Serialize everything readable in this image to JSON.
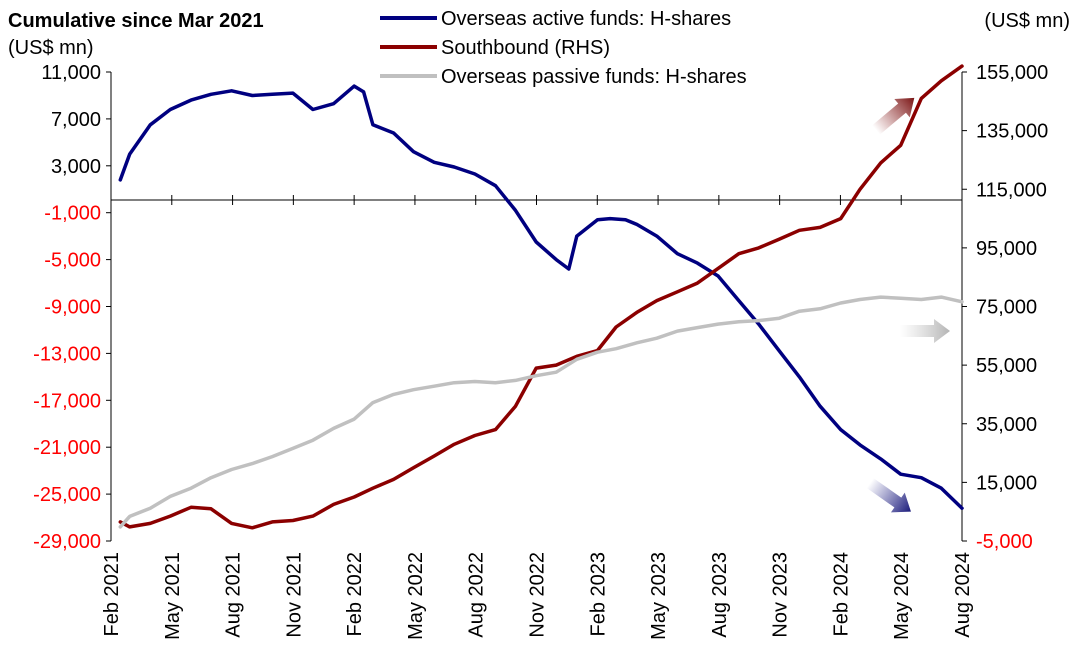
{
  "chart_data": {
    "type": "line",
    "title": "Cumulative since Mar 2021",
    "left_axis_unit": "(US$ mn)",
    "right_axis_unit": "(US$ mn)",
    "x_tick_labels": [
      "Feb 2021",
      "May 2021",
      "Aug 2021",
      "Nov 2021",
      "Feb 2022",
      "May 2022",
      "Aug 2022",
      "Nov 2022",
      "Feb 2023",
      "May 2023",
      "Aug 2023",
      "Nov 2023",
      "Feb 2024",
      "May 2024",
      "Aug 2024"
    ],
    "y_left": {
      "min": -29000,
      "max": 11000,
      "ticks": [
        11000,
        7000,
        3000,
        -1000,
        -5000,
        -9000,
        -13000,
        -17000,
        -21000,
        -25000,
        -29000
      ],
      "tick_labels": [
        "11,000",
        "7,000",
        "3,000",
        "-1,000",
        "-5,000",
        "-9,000",
        "-13,000",
        "-17,000",
        "-21,000",
        "-25,000",
        "-29,000"
      ]
    },
    "y_right": {
      "min": -5000,
      "max": 155000,
      "ticks": [
        155000,
        135000,
        115000,
        95000,
        75000,
        55000,
        35000,
        15000,
        -5000
      ],
      "tick_labels": [
        "155,000",
        "135,000",
        "115,000",
        "95,000",
        "75,000",
        "55,000",
        "35,000",
        "15,000",
        "-5,000"
      ]
    },
    "negative_label_color": "#ff0000",
    "series": [
      {
        "name": "Overseas active funds: H-shares",
        "axis": "left",
        "color": "#000080",
        "x": [
          "2021-02-15",
          "2021-03-01",
          "2021-04-01",
          "2021-05-01",
          "2021-06-01",
          "2021-07-01",
          "2021-08-01",
          "2021-09-01",
          "2021-10-01",
          "2021-11-01",
          "2021-12-01",
          "2022-01-01",
          "2022-02-01",
          "2022-02-15",
          "2022-03-01",
          "2022-04-01",
          "2022-05-01",
          "2022-06-01",
          "2022-07-01",
          "2022-08-01",
          "2022-09-01",
          "2022-10-01",
          "2022-11-01",
          "2022-12-01",
          "2022-12-20",
          "2023-01-01",
          "2023-02-01",
          "2023-02-20",
          "2023-03-15",
          "2023-04-01",
          "2023-05-01",
          "2023-06-01",
          "2023-07-01",
          "2023-08-01",
          "2023-09-01",
          "2023-10-01",
          "2023-11-01",
          "2023-12-01",
          "2024-01-01",
          "2024-02-01",
          "2024-03-01",
          "2024-04-01",
          "2024-05-01",
          "2024-06-01",
          "2024-07-01",
          "2024-08-01"
        ],
        "values": [
          1800,
          4000,
          6500,
          7800,
          8600,
          9100,
          9400,
          9000,
          9100,
          9200,
          7800,
          8300,
          9800,
          9300,
          6500,
          5800,
          4200,
          3300,
          2900,
          2300,
          1300,
          -800,
          -3500,
          -5000,
          -5800,
          -3000,
          -1600,
          -1500,
          -1600,
          -2000,
          -3000,
          -4500,
          -5300,
          -6400,
          -8500,
          -10500,
          -12800,
          -15000,
          -17500,
          -19500,
          -20800,
          -22000,
          -23300,
          -23600,
          -24500,
          -26200
        ]
      },
      {
        "name": "Southbound (RHS)",
        "axis": "right",
        "color": "#8b0000",
        "x": [
          "2021-02-15",
          "2021-03-01",
          "2021-04-01",
          "2021-05-01",
          "2021-06-01",
          "2021-07-01",
          "2021-08-01",
          "2021-09-01",
          "2021-10-01",
          "2021-11-01",
          "2021-12-01",
          "2022-01-01",
          "2022-02-01",
          "2022-03-01",
          "2022-04-01",
          "2022-05-01",
          "2022-06-01",
          "2022-07-01",
          "2022-08-01",
          "2022-09-01",
          "2022-10-01",
          "2022-11-01",
          "2022-12-01",
          "2023-01-01",
          "2023-02-01",
          "2023-03-01",
          "2023-04-01",
          "2023-05-01",
          "2023-06-01",
          "2023-07-01",
          "2023-08-01",
          "2023-09-01",
          "2023-10-01",
          "2023-11-01",
          "2023-12-01",
          "2024-01-01",
          "2024-02-01",
          "2024-03-01",
          "2024-04-01",
          "2024-05-01",
          "2024-06-01",
          "2024-07-01",
          "2024-08-01"
        ],
        "values": [
          1500,
          -200,
          1000,
          3500,
          6500,
          6000,
          1000,
          -500,
          1500,
          2000,
          3500,
          7500,
          10000,
          13000,
          16000,
          20000,
          24000,
          28000,
          31000,
          33000,
          41000,
          54000,
          55000,
          58000,
          60000,
          68000,
          73000,
          77000,
          80000,
          83000,
          88000,
          93000,
          95000,
          98000,
          101000,
          102000,
          105000,
          115000,
          124000,
          130000,
          146000,
          152000,
          157000
        ]
      },
      {
        "name": "Overseas passive funds: H-shares",
        "axis": "left",
        "color": "#c0c0c0",
        "x": [
          "2021-02-15",
          "2021-03-01",
          "2021-04-01",
          "2021-05-01",
          "2021-06-01",
          "2021-07-01",
          "2021-08-01",
          "2021-09-01",
          "2021-10-01",
          "2021-11-01",
          "2021-12-01",
          "2022-01-01",
          "2022-02-01",
          "2022-03-01",
          "2022-04-01",
          "2022-05-01",
          "2022-06-01",
          "2022-07-01",
          "2022-08-01",
          "2022-09-01",
          "2022-10-01",
          "2022-11-01",
          "2022-12-01",
          "2023-01-01",
          "2023-02-01",
          "2023-03-01",
          "2023-04-01",
          "2023-05-01",
          "2023-06-01",
          "2023-07-01",
          "2023-08-01",
          "2023-09-01",
          "2023-10-01",
          "2023-11-01",
          "2023-12-01",
          "2024-01-01",
          "2024-02-01",
          "2024-03-01",
          "2024-04-01",
          "2024-05-01",
          "2024-06-01",
          "2024-07-01",
          "2024-08-01"
        ],
        "values": [
          -27800,
          -26900,
          -26200,
          -25200,
          -24500,
          -23600,
          -22900,
          -22400,
          -21800,
          -21100,
          -20400,
          -19400,
          -18600,
          -17200,
          -16500,
          -16100,
          -15800,
          -15500,
          -15400,
          -15500,
          -15300,
          -14900,
          -14600,
          -13500,
          -12900,
          -12600,
          -12100,
          -11700,
          -11100,
          -10800,
          -10500,
          -10300,
          -10200,
          -10000,
          -9400,
          -9200,
          -8700,
          -8400,
          -8200,
          -8300,
          -8400,
          -8200,
          -8600
        ]
      }
    ],
    "legend_position": "top-center",
    "grid": false
  }
}
